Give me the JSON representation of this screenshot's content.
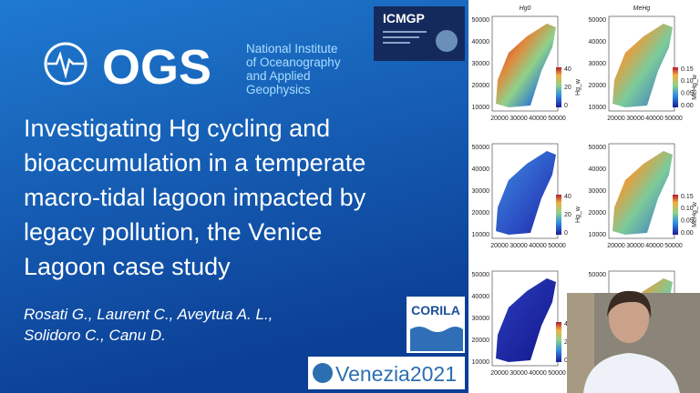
{
  "header": {
    "logo": "OGS",
    "institute": [
      "National Institute",
      "of Oceanography",
      "and Applied",
      "Geophysics"
    ]
  },
  "slide": {
    "title": [
      "Investigating Hg cycling and",
      "bioaccumulation in a temperate",
      "macro-tidal lagoon impacted by",
      "legacy pollution, the Venice",
      "Lagoon case study"
    ],
    "authors": [
      "Rosati G., Laurent C., Aveytua A. L.,",
      "Solidoro C., Canu D."
    ]
  },
  "badges": {
    "conference": "ICMGP",
    "corila": "CORILA",
    "venezia": "Venezia2021"
  },
  "figures": {
    "columns": [
      "Hg0",
      "MeHg"
    ],
    "yticks": [
      "50000",
      "40000",
      "30000",
      "20000",
      "10000"
    ],
    "xticks": [
      "20000",
      "30000",
      "40000",
      "50000"
    ],
    "colorbars": [
      {
        "label": "Hg_w",
        "ticks": [
          "40",
          "20",
          "0"
        ]
      },
      {
        "label": "MeHg_w",
        "ticks": [
          "0.15",
          "0.10",
          "0.05",
          "0.00"
        ]
      }
    ]
  }
}
